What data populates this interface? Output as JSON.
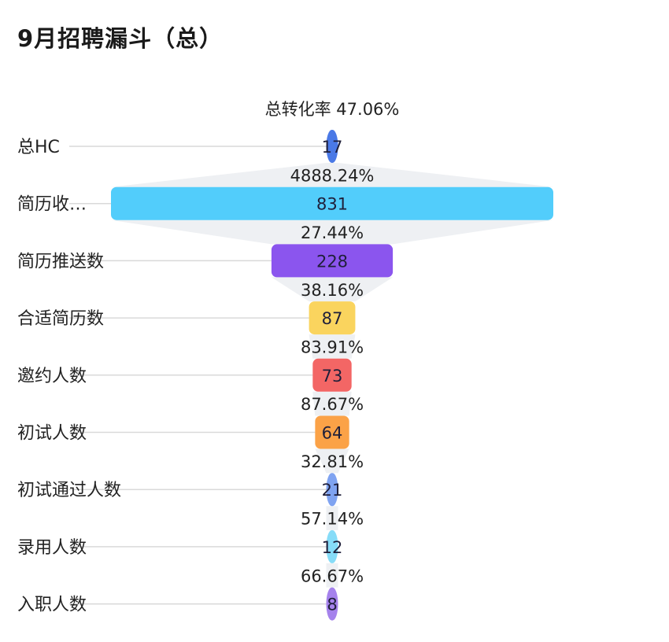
{
  "header": {
    "title": "9月招聘漏斗（总）"
  },
  "chart_data": {
    "type": "funnel",
    "title": "9月招聘漏斗（总）",
    "total_conversion_label": "总转化率 47.06%",
    "stages": [
      {
        "label": "总HC",
        "value": 17,
        "color": "#4a79e6"
      },
      {
        "label": "简历收…",
        "value": 831,
        "color": "#52cdfb"
      },
      {
        "label": "简历推送数",
        "value": 228,
        "color": "#8b55ee"
      },
      {
        "label": "合适简历数",
        "value": 87,
        "color": "#fad45e"
      },
      {
        "label": "邀约人数",
        "value": 73,
        "color": "#f36665"
      },
      {
        "label": "初试人数",
        "value": 64,
        "color": "#fba247"
      },
      {
        "label": "初试通过人数",
        "value": 21,
        "color": "#7fa3f1"
      },
      {
        "label": "录用人数",
        "value": 12,
        "color": "#86dcf8"
      },
      {
        "label": "入职人数",
        "value": 8,
        "color": "#a582ec"
      }
    ],
    "conversion_rates": [
      "4888.24%",
      "27.44%",
      "38.16%",
      "83.91%",
      "87.67%",
      "32.81%",
      "57.14%",
      "66.67%"
    ]
  }
}
